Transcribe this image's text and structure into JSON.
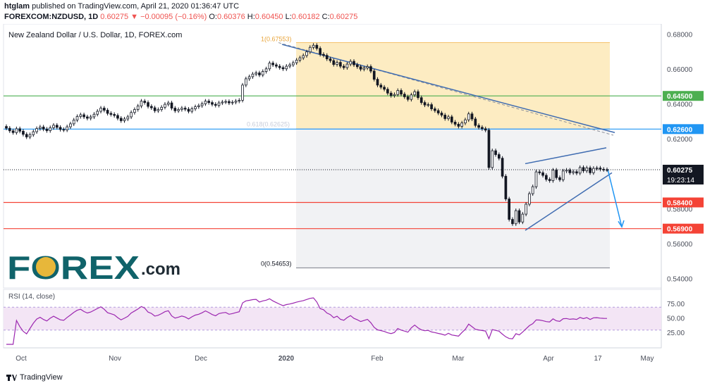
{
  "header": {
    "user": "htglam",
    "published": "published on TradingView.com, April 21, 2020 01:36:47 UTC",
    "symbol": "FOREXCOM:NZDUSD, 1D",
    "last": "0.60275",
    "change": "−0.00095 (−0.16%)",
    "o_label": "O:",
    "o": "0.60376",
    "h_label": "H:",
    "h": "0.60450",
    "l_label": "L:",
    "l": "0.60182",
    "c_label": "C:",
    "c": "0.60275"
  },
  "legend_title": "New Zealand Dollar / U.S. Dollar, 1D, FOREX.com",
  "logo": {
    "text": "FOREX.com"
  },
  "footer": {
    "brand": "TradingView"
  },
  "colors": {
    "up": "#ffffff",
    "down": "#131722",
    "green_level": "#4caf50",
    "blue_level": "#2196f3",
    "red_level": "#f44336",
    "fib_zone": "#fde9b7",
    "rsi": "#9c27b0",
    "rsi_band": "#f3e5f5",
    "trend": "#3f6cb1",
    "logo_teal": "#10636a",
    "logo_gold": "#e7b73a"
  },
  "chart_data": {
    "type": "candlestick",
    "title": "New Zealand Dollar / U.S. Dollar, 1D, FOREX.com",
    "price_axis": {
      "range": [
        0.535,
        0.685
      ],
      "ticks": [
        "0.68000",
        "0.66000",
        "0.64000",
        "0.62000",
        "0.58000",
        "0.56000",
        "0.54000"
      ]
    },
    "x_ticks": [
      "Oct",
      "Nov",
      "Dec",
      "2020",
      "Feb",
      "Mar",
      "Apr",
      "17",
      "May"
    ],
    "last_price": {
      "label": "0.60275",
      "countdown": "19:23:14",
      "value": 0.60275
    },
    "horizontal_levels": [
      {
        "label": "0.64500",
        "value": 0.645,
        "color": "#4caf50"
      },
      {
        "label": "0.62600",
        "value": 0.626,
        "color": "#2196f3"
      },
      {
        "label": "0.58400",
        "value": 0.584,
        "color": "#f44336"
      },
      {
        "label": "0.56900",
        "value": 0.569,
        "color": "#f44336"
      }
    ],
    "fibonacci": [
      {
        "label": "1(0.67553)",
        "value": 0.67553
      },
      {
        "label": "0.618(0.62625)",
        "value": 0.62625
      },
      {
        "label": "0(0.54653)",
        "value": 0.54653
      }
    ],
    "closes": [
      0.6265,
      0.625,
      0.624,
      0.6262,
      0.6248,
      0.623,
      0.6215,
      0.6228,
      0.6245,
      0.6263,
      0.6272,
      0.626,
      0.6251,
      0.6268,
      0.6282,
      0.627,
      0.6258,
      0.6255,
      0.6273,
      0.629,
      0.6312,
      0.6332,
      0.6342,
      0.633,
      0.6322,
      0.633,
      0.6345,
      0.6362,
      0.638,
      0.6368,
      0.635,
      0.6344,
      0.6338,
      0.6322,
      0.6308,
      0.6318,
      0.633,
      0.6355,
      0.6372,
      0.6392,
      0.642,
      0.6412,
      0.639,
      0.6382,
      0.6365,
      0.6372,
      0.6385,
      0.6402,
      0.641,
      0.638,
      0.6365,
      0.6372,
      0.638,
      0.6374,
      0.6362,
      0.6376,
      0.6388,
      0.6394,
      0.6405,
      0.642,
      0.6412,
      0.6402,
      0.6396,
      0.641,
      0.6415,
      0.6418,
      0.641,
      0.6414,
      0.642,
      0.6425,
      0.6512,
      0.6548,
      0.656,
      0.6575,
      0.6582,
      0.657,
      0.659,
      0.6605,
      0.6638,
      0.6628,
      0.662,
      0.6612,
      0.6605,
      0.662,
      0.6628,
      0.664,
      0.6655,
      0.6668,
      0.6681,
      0.6702,
      0.6728,
      0.674,
      0.6722,
      0.6688,
      0.6682,
      0.6662,
      0.6652,
      0.663,
      0.6642,
      0.662,
      0.6612,
      0.6632,
      0.6648,
      0.6628,
      0.6617,
      0.6603,
      0.661,
      0.6618,
      0.6592,
      0.6545,
      0.6512,
      0.65,
      0.6488,
      0.6466,
      0.6452,
      0.6458,
      0.6481,
      0.646,
      0.6445,
      0.643,
      0.6456,
      0.6474,
      0.644,
      0.6412,
      0.6398,
      0.64,
      0.6376,
      0.6366,
      0.6352,
      0.634,
      0.632,
      0.633,
      0.63,
      0.6288,
      0.6276,
      0.6295,
      0.6313,
      0.6347,
      0.6318,
      0.6281,
      0.627,
      0.6262,
      0.6254,
      0.604,
      0.6136,
      0.6114,
      0.6093,
      0.599,
      0.586,
      0.5743,
      0.5718,
      0.5793,
      0.5728,
      0.5773,
      0.583,
      0.589,
      0.593,
      0.6015,
      0.601,
      0.5995,
      0.5972,
      0.5965,
      0.6025,
      0.5982,
      0.597,
      0.602,
      0.6025,
      0.601,
      0.6016,
      0.6008,
      0.604,
      0.6021,
      0.6038,
      0.601,
      0.6035,
      0.6037,
      0.603,
      0.6028,
      0.6027
    ]
  }
}
